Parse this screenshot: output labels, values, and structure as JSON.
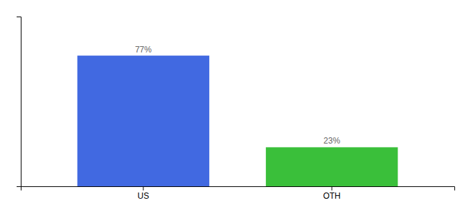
{
  "chart_data": {
    "type": "bar",
    "categories": [
      "US",
      "OTH"
    ],
    "values": [
      77,
      23
    ],
    "value_labels": [
      "77%",
      "23%"
    ],
    "colors": [
      "#4169e1",
      "#3abf3a"
    ],
    "ylim": [
      0,
      100
    ],
    "yticks": [],
    "data_labels": true,
    "tick_labels": "x",
    "grid": false
  }
}
